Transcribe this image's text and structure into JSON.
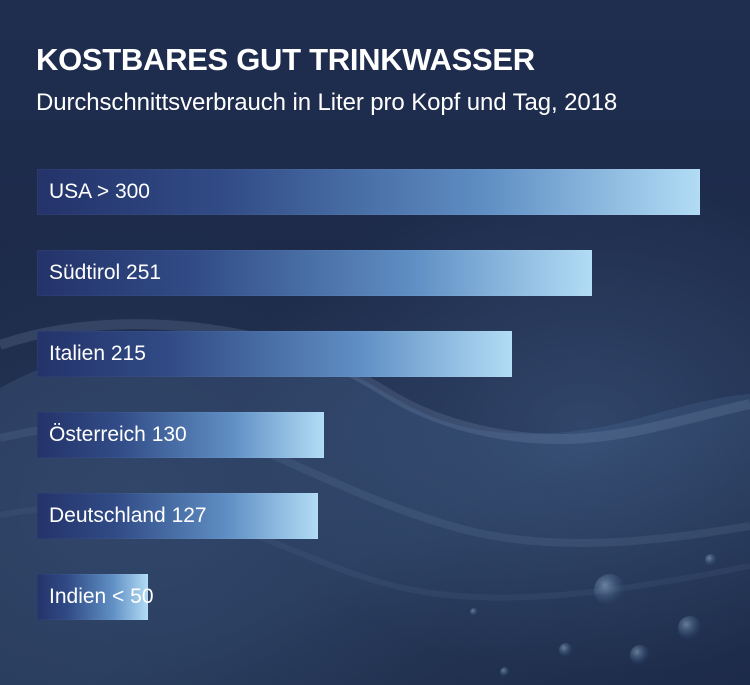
{
  "chart_data": {
    "type": "bar",
    "orientation": "horizontal",
    "title": "KOSTBARES GUT TRINKWASSER",
    "subtitle": "Durchschnittsverbrauch in Liter pro Kopf und Tag, 2018",
    "categories": [
      "USA",
      "Südtirol",
      "Italien",
      "Österreich",
      "Deutschland",
      "Indien"
    ],
    "values": [
      300,
      251,
      215,
      130,
      127,
      50
    ],
    "labels": [
      "USA > 300",
      "Südtirol 251",
      "Italien 215",
      "Österreich 130",
      "Deutschland 127",
      "Indien < 50"
    ],
    "xlim": [
      0,
      300
    ],
    "grid": false,
    "legend": "none"
  },
  "colors": {
    "background": "#1f2d4f",
    "bar_start": "#24336a",
    "bar_end": "#b2dcf5",
    "text": "#ffffff"
  }
}
